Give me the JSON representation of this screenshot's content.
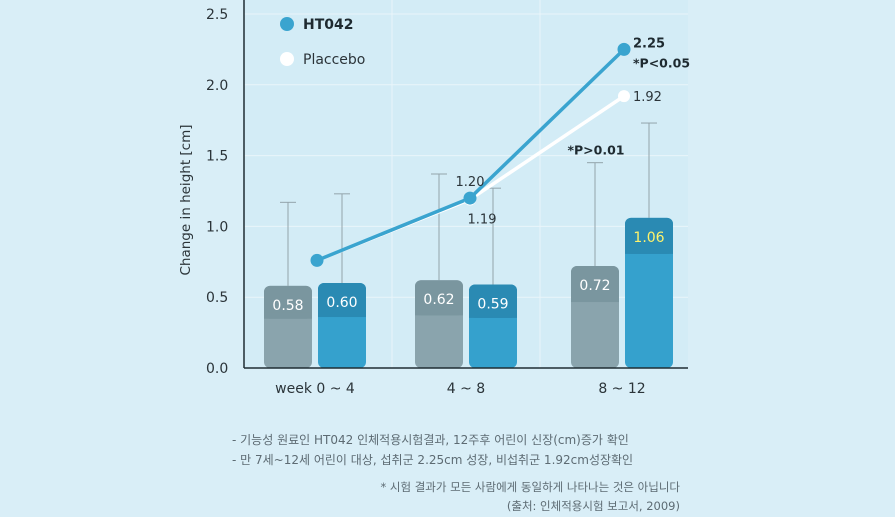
{
  "chart_data": {
    "type": "bar",
    "ylabel": "Change in height [cm]",
    "ylim": [
      0,
      2.5
    ],
    "y_ticks": [
      "0.0",
      "0.5",
      "1.0",
      "1.5",
      "2.0",
      "2.5"
    ],
    "y_tick_values": [
      0,
      0.5,
      1.0,
      1.5,
      2.0,
      2.5
    ],
    "categories": [
      "week 0 ~ 4",
      "4 ~ 8",
      "8 ~ 12"
    ],
    "series": [
      {
        "name": "Placcebo",
        "bar_values": [
          0.58,
          0.62,
          0.72
        ],
        "bar_labels": [
          "0.58",
          "0.62",
          "0.72"
        ],
        "error_upper": [
          1.17,
          1.37,
          1.45
        ],
        "cumulative_line": [
          0.76,
          1.19,
          1.92
        ],
        "line_labels": [
          "",
          "1.19",
          "1.92"
        ],
        "color": "#ffffff",
        "bar_color": "#8aa4ad",
        "bar_top_color": "#7a969f"
      },
      {
        "name": "HT042",
        "bar_values": [
          0.6,
          0.59,
          1.06
        ],
        "bar_labels": [
          "0.60",
          "0.59",
          "1.06"
        ],
        "error_upper": [
          1.23,
          1.27,
          1.73
        ],
        "cumulative_line": [
          0.76,
          1.2,
          2.25
        ],
        "line_labels": [
          "",
          "1.20",
          "2.25"
        ],
        "color": "#3aa4cf",
        "bar_color": "#35a1cd",
        "bar_top_color": "#2a8ab3"
      }
    ],
    "annotations": [
      "*P<0.05",
      "*P>0.01"
    ],
    "legend": [
      "HT042",
      "Placcebo"
    ],
    "legend_placement": "top-left"
  },
  "notes": {
    "line1": "- 기능성 원료인 HT042 인체적용시험결과, 12주후 어린이 신장(cm)증가 확인",
    "line2": "- 만 7세~12세 어린이 대상, 섭취군 2.25cm 성장, 비섭취군 1.92cm성장확인",
    "disclaimer": "* 시험 결과가 모든 사람에게 동일하게 나타나는 것은 아닙니다",
    "source": "(출처: 인체적용시험 보고서, 2009)"
  },
  "colors": {
    "background": "#d9eef7",
    "grid": "#e9f5fa",
    "axis": "#1f2d33",
    "ht042_line": "#3aa4cf",
    "placebo_line": "#ffffff",
    "highlight_label": "#fff36b"
  }
}
